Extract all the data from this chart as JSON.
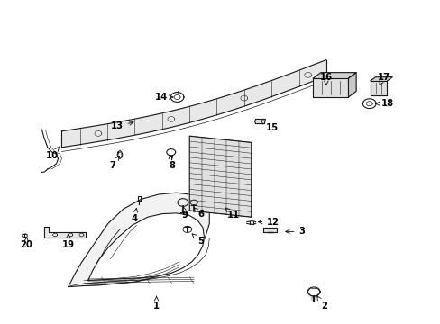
{
  "bg_color": "#ffffff",
  "line_color": "#1a1a1a",
  "label_color": "#000000",
  "figsize": [
    4.89,
    3.6
  ],
  "dpi": 100,
  "label_positions": {
    "1": [
      0.355,
      0.055,
      0.355,
      0.095
    ],
    "2": [
      0.735,
      0.055,
      0.715,
      0.095
    ],
    "3": [
      0.685,
      0.285,
      0.64,
      0.285
    ],
    "4": [
      0.305,
      0.325,
      0.31,
      0.36
    ],
    "5": [
      0.455,
      0.255,
      0.43,
      0.285
    ],
    "6": [
      0.455,
      0.34,
      0.438,
      0.36
    ],
    "7": [
      0.255,
      0.49,
      0.272,
      0.52
    ],
    "8": [
      0.39,
      0.49,
      0.385,
      0.525
    ],
    "9": [
      0.42,
      0.335,
      0.415,
      0.365
    ],
    "10": [
      0.118,
      0.52,
      0.135,
      0.548
    ],
    "11": [
      0.53,
      0.335,
      0.51,
      0.36
    ],
    "12": [
      0.62,
      0.315,
      0.578,
      0.315
    ],
    "13": [
      0.265,
      0.61,
      0.31,
      0.625
    ],
    "14": [
      0.365,
      0.7,
      0.4,
      0.7
    ],
    "15": [
      0.618,
      0.605,
      0.59,
      0.63
    ],
    "16": [
      0.74,
      0.76,
      0.74,
      0.735
    ],
    "17": [
      0.87,
      0.76,
      0.86,
      0.735
    ],
    "18": [
      0.88,
      0.68,
      0.845,
      0.68
    ],
    "19": [
      0.155,
      0.245,
      0.155,
      0.28
    ],
    "20": [
      0.06,
      0.245,
      0.06,
      0.27
    ]
  }
}
